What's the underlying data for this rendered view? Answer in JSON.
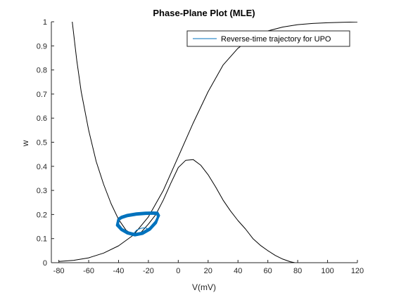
{
  "chart_data": {
    "type": "line",
    "title": "Phase-Plane Plot (MLE)",
    "xlabel": "V(mV)",
    "ylabel": "w",
    "xlim": [
      -85,
      120
    ],
    "ylim": [
      0,
      1
    ],
    "xticks": [
      "-80",
      "-60",
      "-40",
      "-20",
      "0",
      "20",
      "40",
      "60",
      "80",
      "100",
      "120"
    ],
    "yticks": [
      "0",
      "0.1",
      "0.2",
      "0.3",
      "0.4",
      "0.5",
      "0.6",
      "0.7",
      "0.8",
      "0.9",
      "1"
    ],
    "grid": false,
    "legend_position": "top-right",
    "legend": [
      "Reverse-time trajectory for UPO"
    ],
    "series": [
      {
        "color": "#000000",
        "x": [
          -71,
          -68,
          -65,
          -60,
          -55,
          -50,
          -45,
          -40,
          -35,
          -30,
          -25,
          -20,
          -15,
          -10,
          -5,
          0,
          5,
          10,
          15,
          20,
          25,
          30,
          35,
          40,
          45,
          50,
          55,
          60,
          65,
          70,
          75,
          78
        ],
        "y": [
          1.0,
          0.84,
          0.71,
          0.55,
          0.42,
          0.325,
          0.245,
          0.18,
          0.135,
          0.115,
          0.125,
          0.16,
          0.2,
          0.26,
          0.33,
          0.395,
          0.425,
          0.428,
          0.405,
          0.365,
          0.315,
          0.26,
          0.215,
          0.175,
          0.14,
          0.1,
          0.072,
          0.05,
          0.03,
          0.015,
          0.004,
          0.0
        ]
      },
      {
        "color": "#000000",
        "x": [
          -80,
          -70,
          -60,
          -50,
          -40,
          -30,
          -20,
          -10,
          0,
          10,
          20,
          30,
          40,
          50,
          60,
          70,
          80,
          90,
          100,
          110,
          120
        ],
        "y": [
          0.005,
          0.01,
          0.02,
          0.04,
          0.07,
          0.115,
          0.19,
          0.3,
          0.44,
          0.58,
          0.71,
          0.82,
          0.89,
          0.935,
          0.962,
          0.978,
          0.988,
          0.993,
          0.996,
          0.998,
          0.999
        ]
      },
      {
        "name": "Reverse-time trajectory for UPO",
        "color": "#0072bd",
        "x": [
          -40,
          -38,
          -34,
          -28,
          -22,
          -17,
          -14,
          -13,
          -15,
          -19,
          -24,
          -29,
          -34,
          -38,
          -40.5,
          -40,
          -38,
          -34,
          -28,
          -22,
          -17,
          -14,
          -13.5,
          -15,
          -19,
          -24,
          -29,
          -34,
          -38,
          -41,
          -40
        ],
        "y": [
          0.182,
          0.19,
          0.198,
          0.204,
          0.207,
          0.208,
          0.207,
          0.196,
          0.17,
          0.142,
          0.124,
          0.118,
          0.126,
          0.14,
          0.16,
          0.178,
          0.186,
          0.194,
          0.2,
          0.203,
          0.204,
          0.202,
          0.19,
          0.165,
          0.138,
          0.12,
          0.114,
          0.122,
          0.136,
          0.155,
          0.182
        ]
      },
      {
        "color": "#0072bd",
        "x": [
          -30,
          -28,
          -25,
          -22,
          -20.5,
          -22,
          -25,
          -28,
          -30
        ],
        "y": [
          0.12,
          0.135,
          0.143,
          0.145,
          0.14,
          0.132,
          0.125,
          0.12,
          0.12
        ]
      }
    ]
  }
}
